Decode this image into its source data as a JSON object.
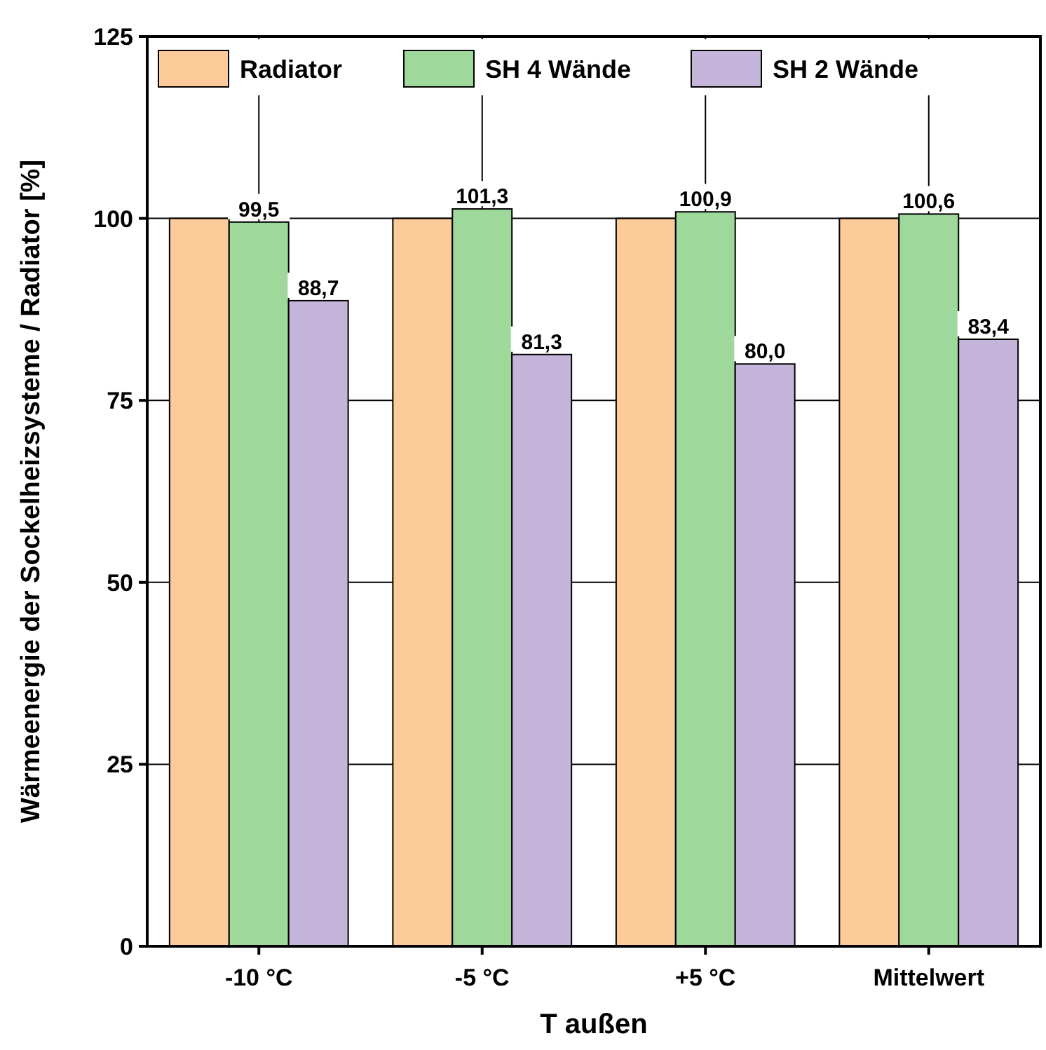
{
  "chart_data": {
    "type": "bar",
    "xlabel": "T außen",
    "ylabel": "Wärmeenergie der Sockelheizsysteme / Radiator [%]",
    "categories": [
      "-10 °C",
      "-5 °C",
      "+5 °C",
      "Mittelwert"
    ],
    "series": [
      {
        "name": "Radiator",
        "color": "#fdca9a",
        "values": [
          100,
          100,
          100,
          100
        ]
      },
      {
        "name": "SH 4 Wände",
        "color": "#9fd89b",
        "values": [
          99.5,
          101.3,
          100.9,
          100.6
        ],
        "value_labels": [
          "99,5",
          "101,3",
          "100,9",
          "100,6"
        ]
      },
      {
        "name": "SH 2 Wände",
        "color": "#c6b5da",
        "values": [
          88.7,
          81.3,
          80.0,
          83.4
        ],
        "value_labels": [
          "88,7",
          "81,3",
          "80,0",
          "83,4"
        ]
      }
    ],
    "ylim": [
      0,
      125
    ],
    "yticks": [
      0,
      25,
      50,
      75,
      100,
      125
    ],
    "grid": true,
    "legend": "top"
  }
}
